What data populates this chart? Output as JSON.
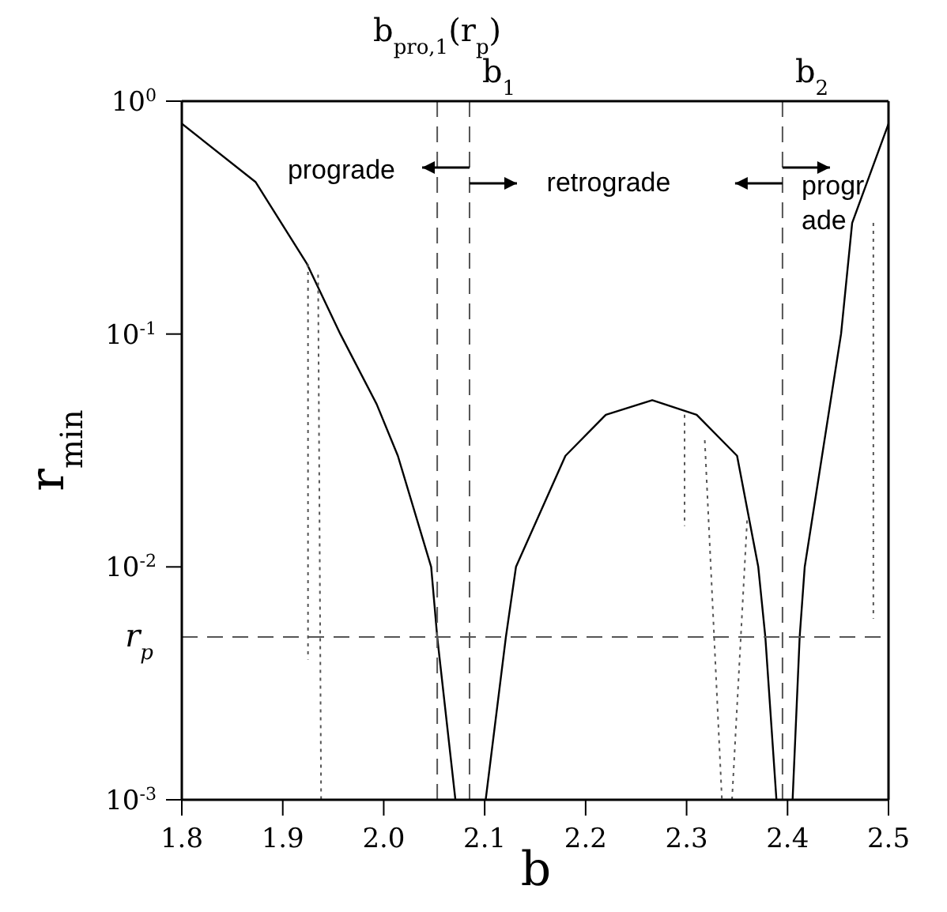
{
  "chart_data": {
    "type": "line",
    "xlabel": "b",
    "ylabel": "r$_{min}$",
    "log": "y",
    "xlim": [
      1.8,
      2.5
    ],
    "xticks": [
      1.8,
      1.9,
      {
        "value": 2,
        "label": "2.0"
      },
      2.1,
      2.2,
      2.3,
      2.4,
      2.5
    ],
    "ylim": [
      0.001,
      1
    ],
    "yticks": [
      {
        "value": 0.001,
        "label": "10$^{-3}$"
      },
      {
        "value": 0.01,
        "label": "10$^{-2}$"
      },
      {
        "value": 0.1,
        "label": "10$^{-1}$"
      },
      {
        "value": 1,
        "label": "10$^{0}$"
      }
    ],
    "marker": "none",
    "series": [
      {
        "color": "#000000",
        "line_style": "solid",
        "x": [
          1.8,
          1.873,
          1.924,
          1.957,
          1.993,
          2.014,
          2.047,
          2.053,
          2.071,
          2.086,
          2.101,
          2.121,
          2.131,
          2.18,
          2.22,
          2.266,
          2.31,
          2.35,
          2.371,
          2.378,
          2.389,
          2.397,
          2.405,
          2.412,
          2.417,
          2.453,
          2.464,
          2.5
        ],
        "values": [
          0.8,
          0.45,
          0.2,
          0.1,
          0.05,
          0.03,
          0.01,
          0.005,
          0.001,
          null,
          0.001,
          0.005,
          0.01,
          0.03,
          0.045,
          0.052,
          0.045,
          0.03,
          0.01,
          0.005,
          0.001,
          null,
          0.001,
          0.005,
          0.01,
          0.1,
          0.3,
          0.8
        ]
      },
      {
        "color": "#555555",
        "line_style": "dotted",
        "x": [
          1.925,
          1.925,
          1.93,
          1.935,
          1.938,
          1.94,
          2.298,
          2.298,
          2.3,
          2.318,
          2.335,
          2.34,
          2.345,
          2.36,
          2.37,
          2.485,
          2.485
        ],
        "values": [
          0.2,
          0.004,
          null,
          0.18,
          0.001,
          null,
          0.045,
          0.015,
          null,
          0.035,
          0.001,
          null,
          0.001,
          0.016,
          null,
          0.3,
          0.006
        ]
      }
    ],
    "ref_lines": [
      {
        "axis": "x",
        "value": 2.053,
        "label": "b$_{pro,1}$(r$_{p}$)",
        "color": "#555555",
        "line_style": "dashed"
      },
      {
        "axis": "x",
        "value": 2.085,
        "label": "b$_{1}$",
        "color": "#555555",
        "line_style": "dashed"
      },
      {
        "axis": "x",
        "value": 2.395,
        "label": "b$_{2}$",
        "color": "#555555",
        "line_style": "dashed"
      },
      {
        "axis": "y",
        "value": 0.005,
        "label": "r$_{p}$",
        "color": "#555555",
        "line_style": "dashed"
      }
    ],
    "annotations": [
      "prograde",
      "retrograde",
      "progr\nade"
    ]
  }
}
